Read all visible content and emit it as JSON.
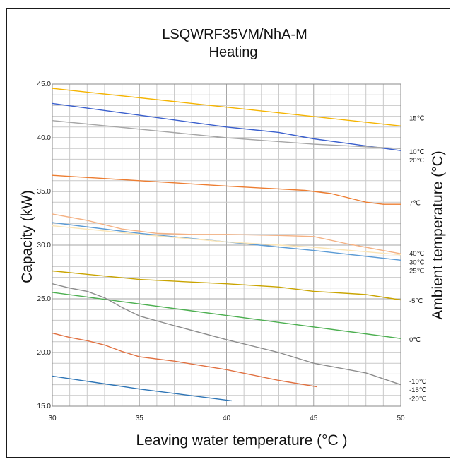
{
  "chart_data": {
    "type": "line",
    "title": "LSQWRF35VM/NhA-M",
    "subtitle": "Heating",
    "xlabel": "Leaving water temperature (°C )",
    "ylabel": "Capacity (kW)",
    "y2label": "Ambient temperature (°C)",
    "xlim": [
      30,
      50
    ],
    "ylim": [
      15,
      45
    ],
    "x_ticks": [
      "30",
      "35",
      "40",
      "45",
      "50"
    ],
    "y_ticks": [
      "15.0",
      "20.0",
      "25.0",
      "30.0",
      "35.0",
      "40.0",
      "45.0"
    ],
    "grid": true,
    "legend": "right",
    "series": [
      {
        "name": "15℃",
        "color": "#f5b400",
        "x": [
          30,
          50
        ],
        "y": [
          44.6,
          41.1
        ]
      },
      {
        "name": "10℃",
        "color": "#3a5fcd",
        "x": [
          30,
          35,
          40,
          43,
          45,
          50
        ],
        "y": [
          43.2,
          42.1,
          41.0,
          40.5,
          39.9,
          38.8
        ]
      },
      {
        "name": "20℃",
        "color": "#a6a6a6",
        "x": [
          30,
          35,
          40,
          45,
          50
        ],
        "y": [
          41.6,
          40.8,
          40.0,
          39.4,
          39.0
        ]
      },
      {
        "name": "7℃",
        "color": "#ed7d31",
        "x": [
          30,
          35,
          40,
          44.5,
          46,
          48,
          49,
          50
        ],
        "y": [
          36.5,
          36.0,
          35.5,
          35.1,
          34.8,
          34.0,
          33.8,
          33.8
        ]
      },
      {
        "name": "40℃",
        "color": "#f4b183",
        "x": [
          30,
          32,
          34,
          36,
          38,
          40,
          43,
          45,
          47,
          50
        ],
        "y": [
          32.9,
          32.3,
          31.5,
          31.1,
          31.0,
          31.0,
          30.9,
          30.8,
          30.1,
          29.2
        ]
      },
      {
        "name": "30℃",
        "color": "#5b9bd5",
        "x": [
          30,
          35,
          40,
          45,
          50
        ],
        "y": [
          32.1,
          31.1,
          30.3,
          29.5,
          28.6
        ]
      },
      {
        "name": "25℃",
        "color": "#fbe5b6",
        "x": [
          30,
          35,
          40,
          45,
          50
        ],
        "y": [
          31.8,
          31.0,
          30.3,
          29.8,
          29.1
        ]
      },
      {
        "name": "-5℃",
        "color": "#c9a400",
        "x": [
          30,
          35,
          40,
          43,
          45,
          48,
          50
        ],
        "y": [
          27.6,
          26.8,
          26.4,
          26.1,
          25.7,
          25.4,
          24.9
        ]
      },
      {
        "name": "0℃",
        "color": "#4caf50",
        "x": [
          30,
          50
        ],
        "y": [
          25.6,
          21.3
        ]
      },
      {
        "name": "-10℃",
        "color": "#8c8c8c",
        "x": [
          30,
          31,
          32,
          33,
          34,
          35,
          37,
          40,
          43,
          45,
          48,
          50
        ],
        "y": [
          26.4,
          26.0,
          25.7,
          25.1,
          24.2,
          23.4,
          22.5,
          21.2,
          20.0,
          19.0,
          18.1,
          17.0
        ]
      },
      {
        "name": "-15℃",
        "color": "#e07040",
        "x": [
          30,
          31,
          32,
          33,
          34,
          35,
          37,
          40,
          43,
          45.2
        ],
        "y": [
          21.8,
          21.4,
          21.1,
          20.7,
          20.1,
          19.6,
          19.2,
          18.4,
          17.4,
          16.8
        ]
      },
      {
        "name": "-20℃",
        "color": "#2e75b6",
        "x": [
          30,
          35,
          40.3
        ],
        "y": [
          17.8,
          16.6,
          15.5
        ]
      }
    ],
    "right_labels": [
      {
        "text": "15℃",
        "y": 41.8
      },
      {
        "text": "10℃",
        "y": 38.7
      },
      {
        "text": "20℃",
        "y": 37.9
      },
      {
        "text": "7℃",
        "y": 33.9
      },
      {
        "text": "40℃",
        "y": 29.2
      },
      {
        "text": "30℃",
        "y": 28.4
      },
      {
        "text": "25℃",
        "y": 27.6
      },
      {
        "text": "-5℃",
        "y": 24.8
      },
      {
        "text": "0℃",
        "y": 21.2
      },
      {
        "text": "-10℃",
        "y": 17.3
      },
      {
        "text": "-15℃",
        "y": 16.5
      },
      {
        "text": "-20℃",
        "y": 15.7
      }
    ]
  }
}
